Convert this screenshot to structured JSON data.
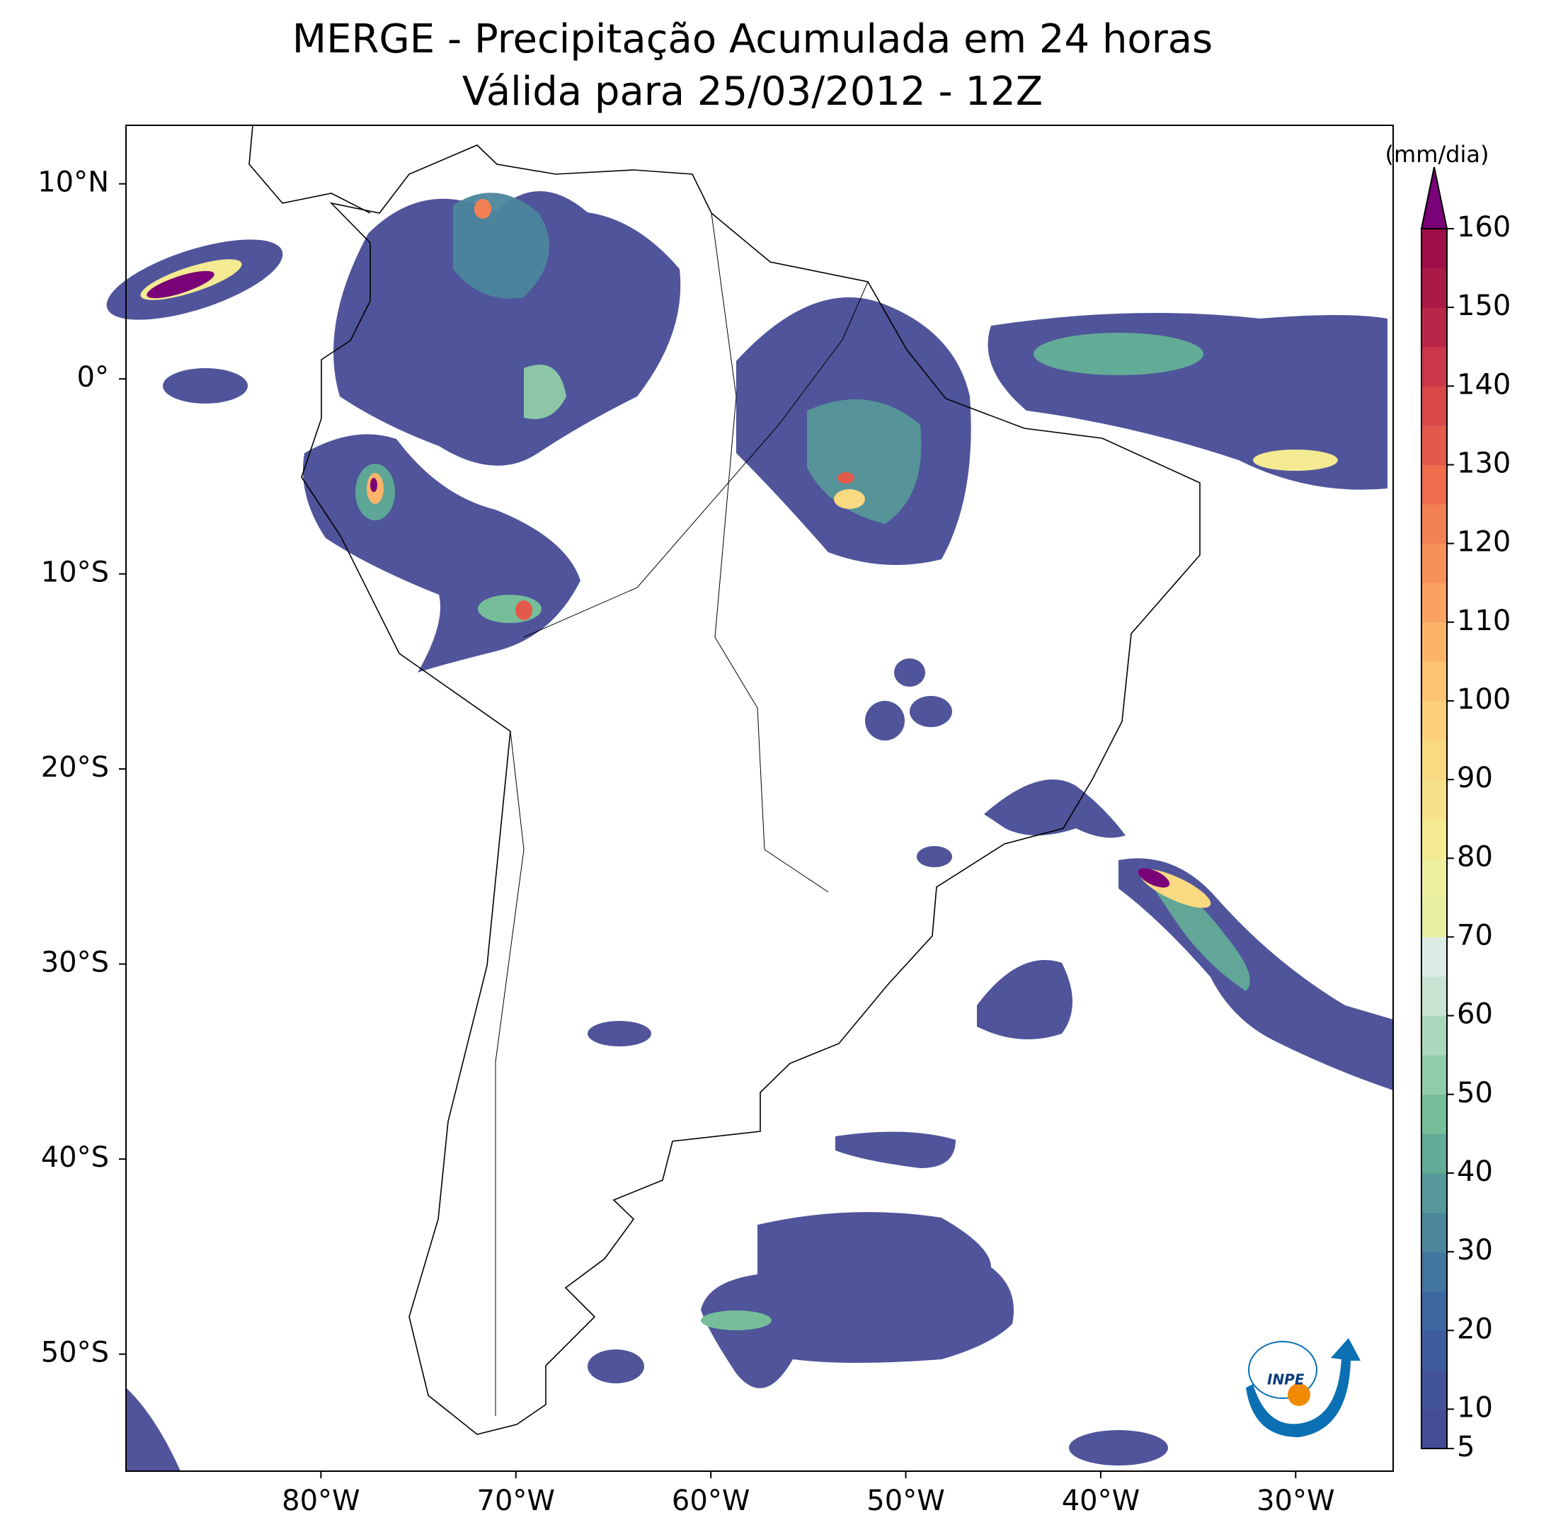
{
  "map": {
    "title": [
      "MERGE - Precipitação Acumulada em 24 horas",
      "Válida para 25/03/2012 - 12Z"
    ],
    "xlim": [
      -90,
      -25
    ],
    "ylim": [
      -56,
      13
    ],
    "xticks": [
      {
        "value": -80,
        "label": "80°W"
      },
      {
        "value": -70,
        "label": "70°W"
      },
      {
        "value": -60,
        "label": "60°W"
      },
      {
        "value": -50,
        "label": "50°W"
      },
      {
        "value": -40,
        "label": "40°W"
      },
      {
        "value": -30,
        "label": "30°W"
      }
    ],
    "yticks": [
      {
        "value": 10,
        "label": "10°N"
      },
      {
        "value": 0,
        "label": "0°"
      },
      {
        "value": -10,
        "label": "10°S"
      },
      {
        "value": -20,
        "label": "20°S"
      },
      {
        "value": -30,
        "label": "30°S"
      },
      {
        "value": -40,
        "label": "40°S"
      },
      {
        "value": -50,
        "label": "50°S"
      }
    ]
  },
  "colorbar": {
    "label": "(mm/dia)",
    "levels": [
      5,
      10,
      15,
      20,
      25,
      30,
      35,
      40,
      45,
      50,
      55,
      60,
      65,
      70,
      75,
      80,
      85,
      90,
      95,
      100,
      105,
      110,
      115,
      120,
      125,
      130,
      135,
      140,
      145,
      150,
      155,
      160
    ],
    "colors": [
      "#464b96",
      "#42539a",
      "#3e5c9d",
      "#3d679f",
      "#43769f",
      "#4c869c",
      "#56989a",
      "#62ab97",
      "#75be99",
      "#8fcca8",
      "#abd8bc",
      "#c6e4d1",
      "#dcede6",
      "#e6f0a0",
      "#eef0a0",
      "#f3ea92",
      "#f6e088",
      "#f9d981",
      "#fcd07c",
      "#fcc474",
      "#fbb46a",
      "#f9a262",
      "#f7915a",
      "#f38053",
      "#ed6d4d",
      "#e35a4a",
      "#d84849",
      "#ca3749",
      "#ba2648",
      "#aa1846",
      "#9e0d45"
    ],
    "extend_color": "#7a0177",
    "ticks": [
      5,
      10,
      20,
      30,
      40,
      50,
      60,
      70,
      80,
      90,
      100,
      110,
      120,
      130,
      140,
      150,
      160
    ]
  },
  "logo": {
    "text": "INPE"
  }
}
